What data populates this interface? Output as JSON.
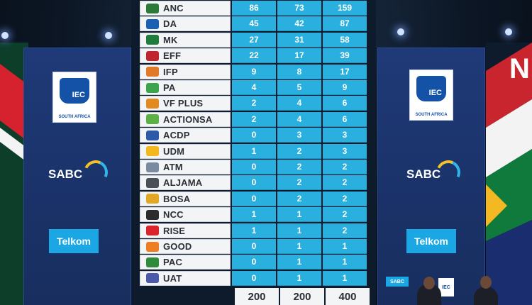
{
  "colors": {
    "cell_blue": "#29b0df",
    "party_bg": "#f3f4f6",
    "panel_blue": "#1f3a78",
    "telkom_blue": "#1aa7e3"
  },
  "left_panel": {
    "iec_text": "IEC",
    "iec_sub": "SOUTH AFRICA",
    "sabc_text": "SABC",
    "telkom_text": "Telkom"
  },
  "right_panel": {
    "iec_text": "IEC",
    "iec_sub": "SOUTH AFRICA",
    "sabc_text": "SABC",
    "telkom_text": "Telkom",
    "edge_letter": "N"
  },
  "board": {
    "rows": [
      {
        "party": "ANC",
        "logo": "#2b7a3a",
        "a": "86",
        "b": "73",
        "c": "159"
      },
      {
        "party": "DA",
        "logo": "#1961b3",
        "a": "45",
        "b": "42",
        "c": "87"
      },
      {
        "party": "MK",
        "logo": "#1f7d3b",
        "a": "27",
        "b": "31",
        "c": "58"
      },
      {
        "party": "EFF",
        "logo": "#c0262d",
        "a": "22",
        "b": "17",
        "c": "39"
      },
      {
        "party": "IFP",
        "logo": "#e07a2a",
        "a": "9",
        "b": "8",
        "c": "17"
      },
      {
        "party": "PA",
        "logo": "#3aa54a",
        "a": "4",
        "b": "5",
        "c": "9"
      },
      {
        "party": "VF PLUS",
        "logo": "#e28a1f",
        "a": "2",
        "b": "4",
        "c": "6"
      },
      {
        "party": "ACTIONSA",
        "logo": "#5cb145",
        "a": "2",
        "b": "4",
        "c": "6"
      },
      {
        "party": "ACDP",
        "logo": "#2d5aa8",
        "a": "0",
        "b": "3",
        "c": "3"
      },
      {
        "party": "UDM",
        "logo": "#f2b81e",
        "a": "1",
        "b": "2",
        "c": "3"
      },
      {
        "party": "ATM",
        "logo": "#7a8aa0",
        "a": "0",
        "b": "2",
        "c": "2"
      },
      {
        "party": "ALJAMA",
        "logo": "#4b4f57",
        "a": "0",
        "b": "2",
        "c": "2"
      },
      {
        "party": "BOSA",
        "logo": "#e2a824",
        "a": "0",
        "b": "2",
        "c": "2"
      },
      {
        "party": "NCC",
        "logo": "#2c2c2c",
        "a": "1",
        "b": "1",
        "c": "2"
      },
      {
        "party": "RISE",
        "logo": "#d9252b",
        "a": "1",
        "b": "1",
        "c": "2"
      },
      {
        "party": "GOOD",
        "logo": "#ef7d22",
        "a": "0",
        "b": "1",
        "c": "1"
      },
      {
        "party": "PAC",
        "logo": "#2f8a3b",
        "a": "0",
        "b": "1",
        "c": "1"
      },
      {
        "party": "UAT",
        "logo": "#4a5aa8",
        "a": "0",
        "b": "1",
        "c": "1"
      }
    ],
    "totals": [
      "200",
      "200",
      "400"
    ]
  },
  "podium": {
    "iec_text": "IEC",
    "sabc_text": "SABC"
  }
}
